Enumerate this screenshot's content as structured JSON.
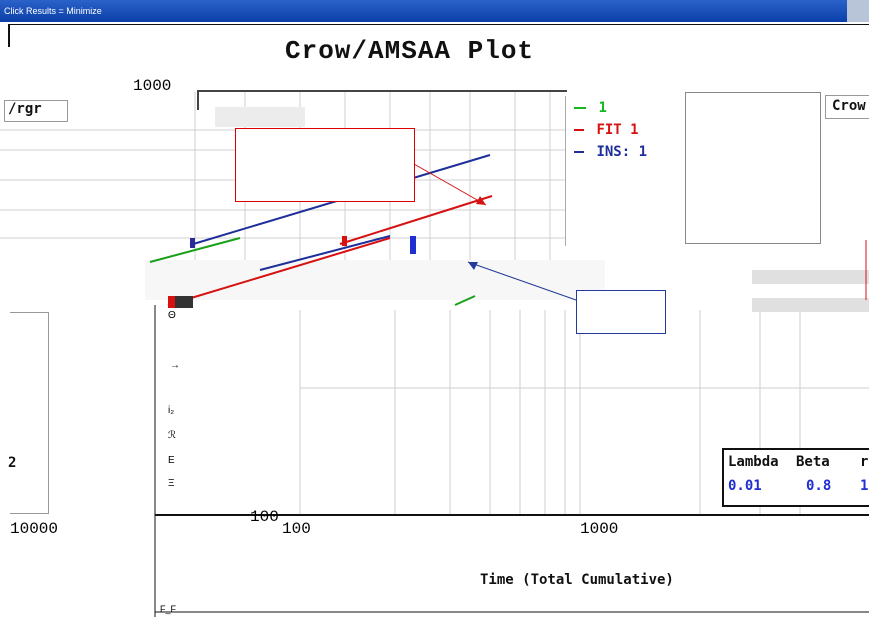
{
  "window": {
    "title": "Click Results = Minimize"
  },
  "plot": {
    "title": "Crow/AMSAA Plot",
    "xlabel": "Time (Total Cumulative)",
    "y_top_label": "1000",
    "y_bottom_label": "100",
    "x_ticks": [
      "100",
      "1000"
    ],
    "left_x_tick": "10000",
    "left_label": "/rgr",
    "right_label": "Crow",
    "lower_left_label": "2",
    "left_tick_marks": [
      "Θ",
      "→",
      "i₂",
      "ℛ",
      "E",
      "Ξ",
      "F_F"
    ]
  },
  "legend": {
    "items": [
      {
        "label": "1",
        "color": "#17b81d"
      },
      {
        "label": "FIT 1",
        "color": "#d71010"
      },
      {
        "label": "INS: 1",
        "color": "#1f2f9a"
      }
    ]
  },
  "results": {
    "headers": [
      "Lambda",
      "Beta",
      "r"
    ],
    "values": [
      "0.01",
      "0.8",
      "1"
    ]
  },
  "colors": {
    "fit": "#d71010",
    "ins": "#1f2f9a",
    "data": "#19a019",
    "grid": "#c8c8c8",
    "accent": "#0b3fa8"
  }
}
